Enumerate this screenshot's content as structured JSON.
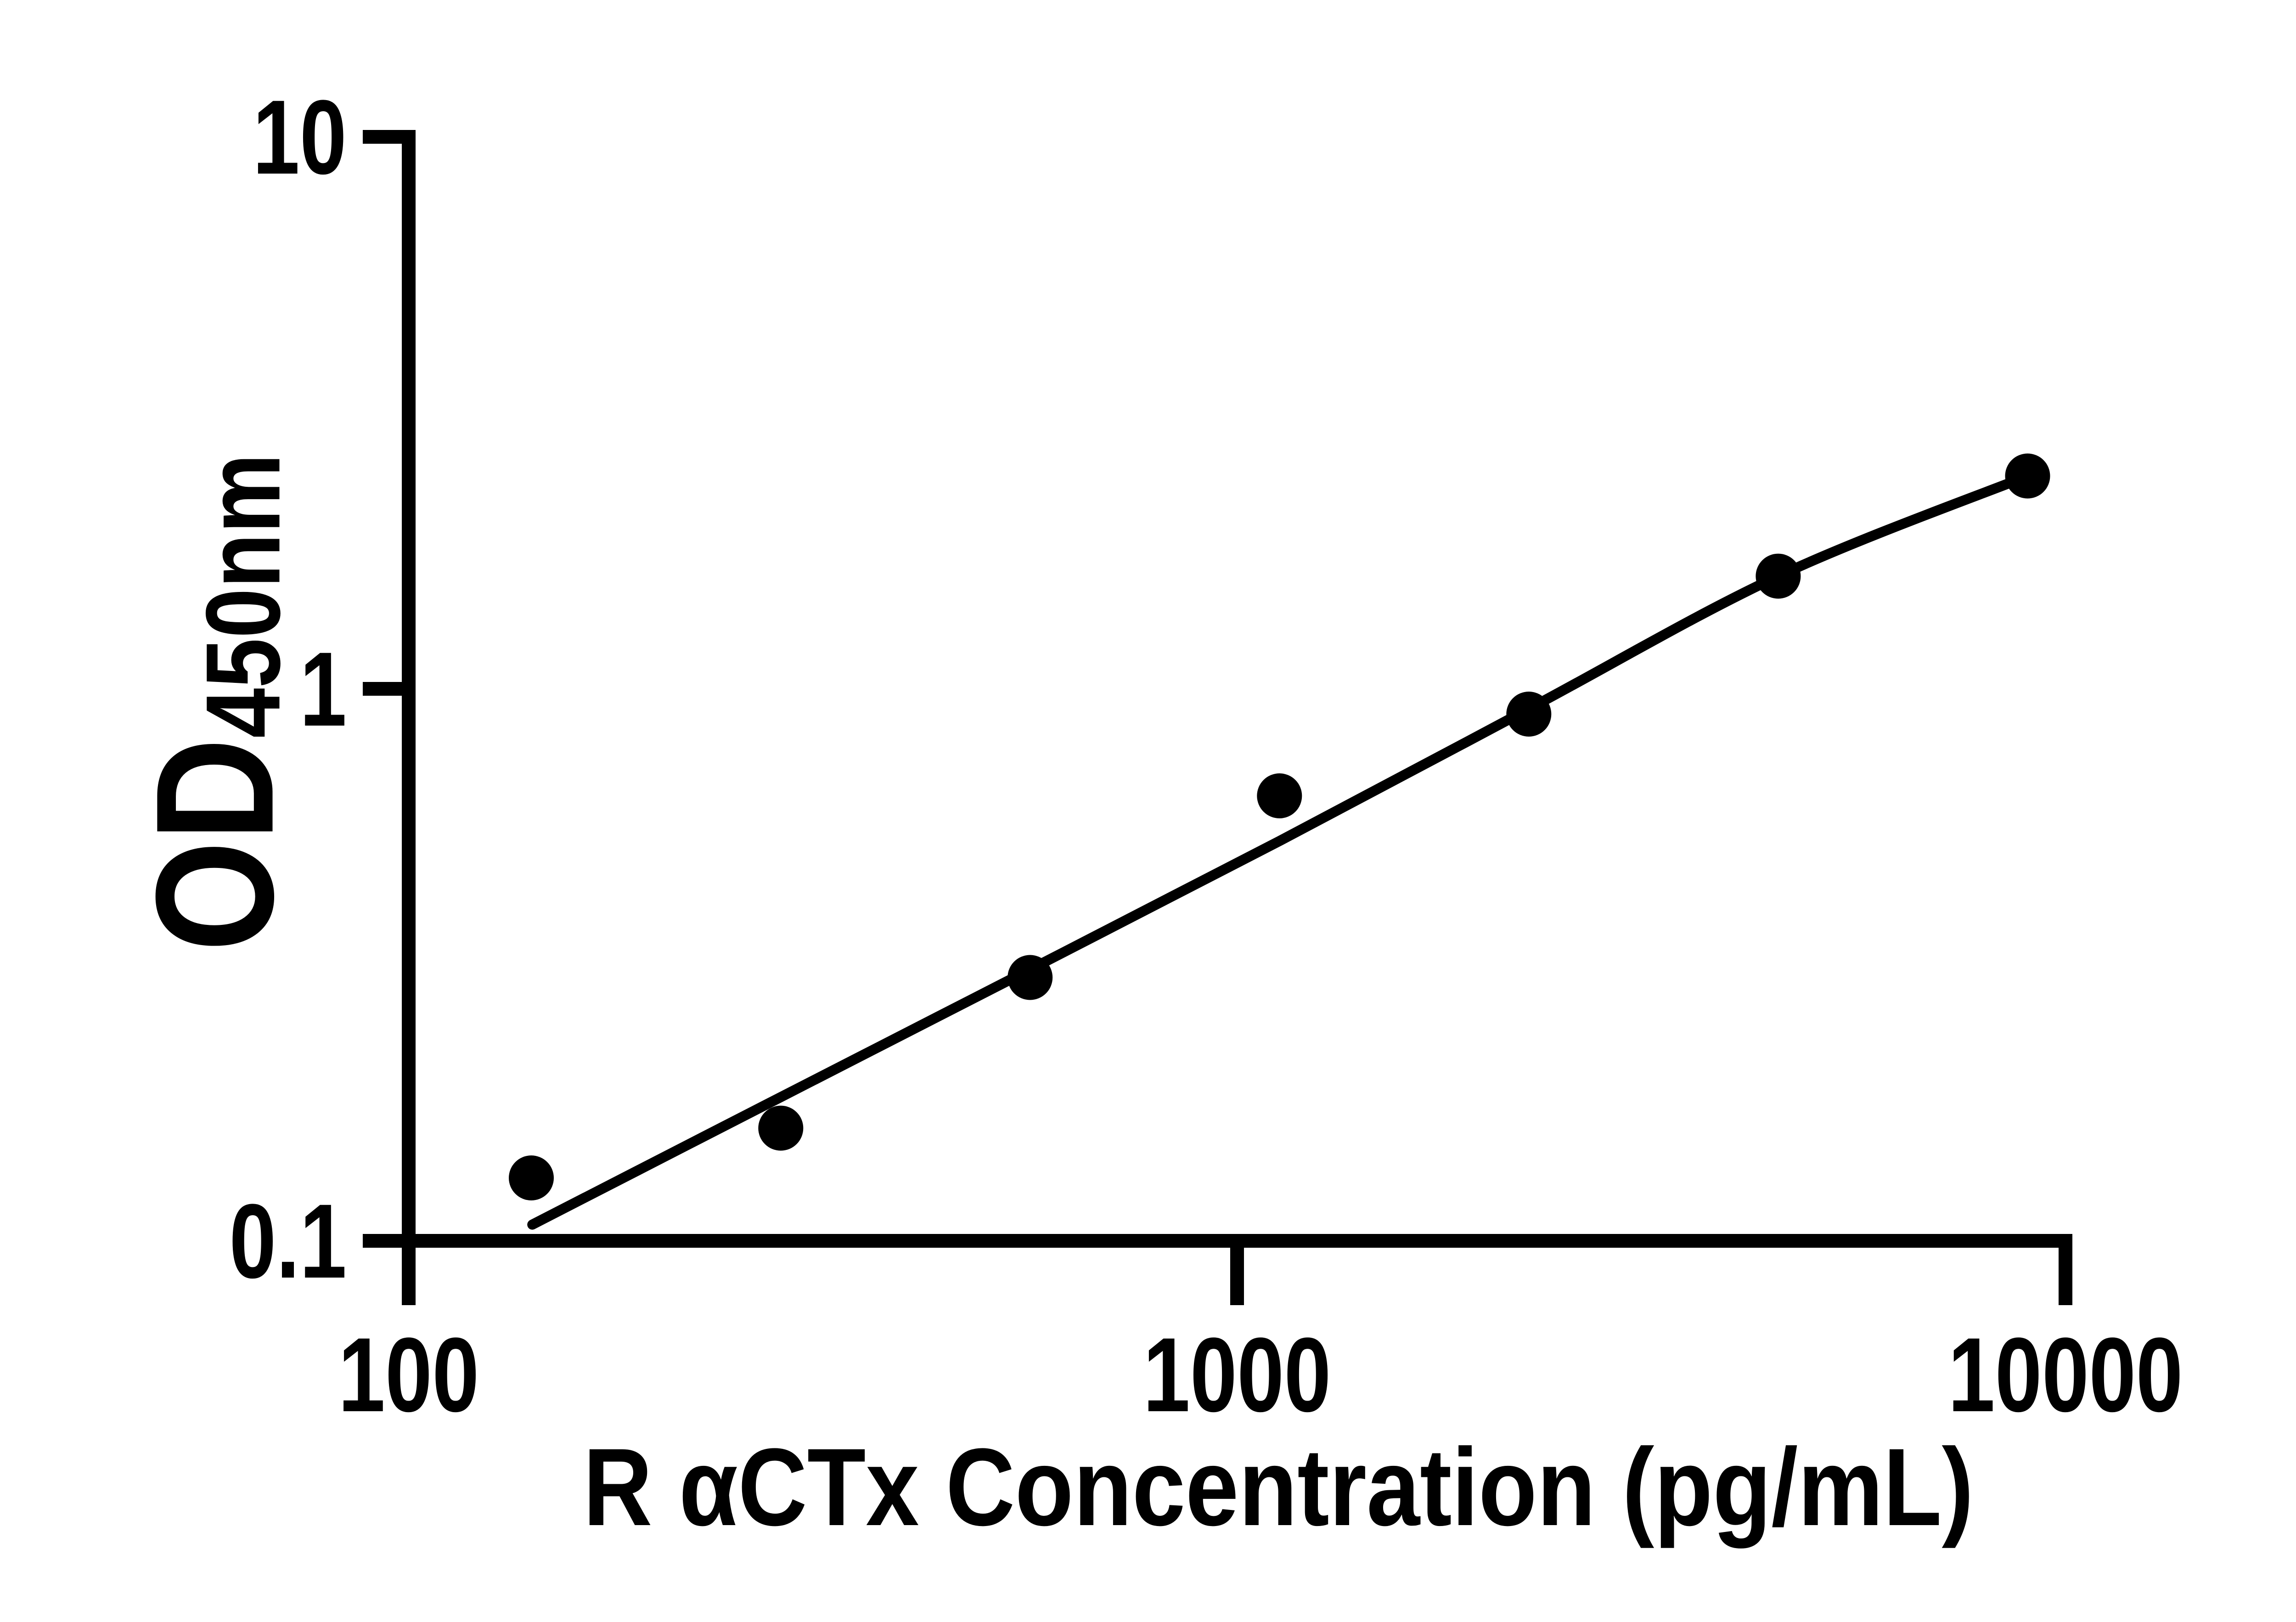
{
  "figure": {
    "background_color": "#ffffff",
    "ink_color": "#000000"
  },
  "chart_data": {
    "type": "scatter",
    "title": "",
    "xlabel": "R αCTx Concentration (pg/mL)",
    "ylabel_main": "OD",
    "ylabel_sub": "450nm",
    "x_scale": "log",
    "y_scale": "log",
    "xlim": [
      100,
      10000
    ],
    "ylim": [
      0.1,
      10
    ],
    "grid": "off",
    "legend": "none",
    "x_ticks": [
      {
        "value": 100,
        "label": "100"
      },
      {
        "value": 1000,
        "label": "1000"
      },
      {
        "value": 10000,
        "label": "10000"
      }
    ],
    "y_ticks": [
      {
        "value": 10,
        "label": "10"
      },
      {
        "value": 1,
        "label": "1"
      },
      {
        "value": 0.1,
        "label": "0.1"
      }
    ],
    "series": [
      {
        "name": "standard-points",
        "marker": "filled-circle",
        "color": "#000000",
        "points": [
          {
            "conc": 140.6,
            "od": 0.13
          },
          {
            "conc": 281.3,
            "od": 0.16
          },
          {
            "conc": 562.5,
            "od": 0.3
          },
          {
            "conc": 1125,
            "od": 0.64
          },
          {
            "conc": 2250,
            "od": 0.9
          },
          {
            "conc": 4500,
            "od": 1.6
          },
          {
            "conc": 9000,
            "od": 2.43
          }
        ]
      }
    ],
    "fit_curve": {
      "name": "fit-line",
      "color": "#000000",
      "points": [
        {
          "conc": 141,
          "od": 0.107
        },
        {
          "conc": 281,
          "od": 0.182
        },
        {
          "conc": 562,
          "od": 0.31
        },
        {
          "conc": 1125,
          "od": 0.53
        },
        {
          "conc": 2250,
          "od": 0.92
        },
        {
          "conc": 4500,
          "od": 1.6
        },
        {
          "conc": 9000,
          "od": 2.43
        }
      ]
    }
  }
}
